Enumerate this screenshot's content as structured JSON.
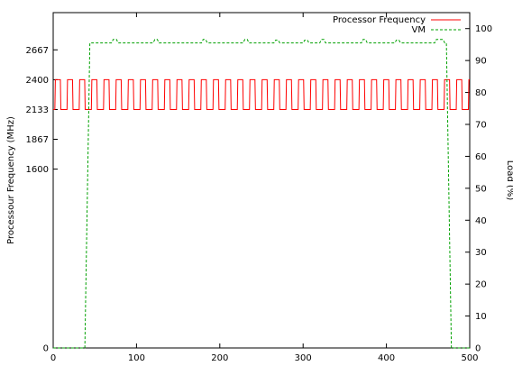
{
  "chart_data": {
    "type": "line",
    "title": "",
    "xlabel": "",
    "ylabel_left": "Processour Frequency (MHz)",
    "ylabel_right": "Load (%)",
    "xlim": [
      0,
      500
    ],
    "ylim_left": [
      0,
      3000
    ],
    "ylim_right": [
      0,
      105
    ],
    "x_ticks": [
      0,
      100,
      200,
      300,
      400,
      500
    ],
    "y_left_ticks": [
      0,
      1600,
      1867,
      2133,
      2400,
      2667
    ],
    "y_right_ticks": [
      0,
      10,
      20,
      30,
      40,
      50,
      60,
      70,
      80,
      90,
      100
    ],
    "grid": false,
    "legend_position": "top-right",
    "series": [
      {
        "name": "Processor Frequency",
        "axis": "left",
        "color": "#ff0000",
        "dash": "solid",
        "pattern": {
          "low": 2133,
          "high": 2400,
          "period": 14.6,
          "high_duration": 6.6,
          "first_rise": 2,
          "x_end": 500
        }
      },
      {
        "name": "VM",
        "axis": "right",
        "color": "#00a000",
        "dash": "dashed",
        "points": [
          [
            0,
            0
          ],
          [
            38,
            0
          ],
          [
            44,
            95.5
          ],
          [
            70,
            95.5
          ],
          [
            72,
            96.6
          ],
          [
            76,
            96.6
          ],
          [
            78,
            95.5
          ],
          [
            120,
            95.5
          ],
          [
            122,
            96.6
          ],
          [
            125,
            96.6
          ],
          [
            127,
            95.5
          ],
          [
            178,
            95.5
          ],
          [
            180,
            96.6
          ],
          [
            183,
            96.6
          ],
          [
            185,
            95.5
          ],
          [
            228,
            95.5
          ],
          [
            230,
            96.6
          ],
          [
            233,
            96.6
          ],
          [
            235,
            95.5
          ],
          [
            265,
            95.5
          ],
          [
            267,
            96.4
          ],
          [
            270,
            96.4
          ],
          [
            272,
            95.5
          ],
          [
            300,
            95.5
          ],
          [
            302,
            96.4
          ],
          [
            305,
            96.4
          ],
          [
            307,
            95.5
          ],
          [
            320,
            95.5
          ],
          [
            322,
            96.6
          ],
          [
            325,
            96.6
          ],
          [
            327,
            95.5
          ],
          [
            370,
            95.5
          ],
          [
            372,
            96.6
          ],
          [
            375,
            96.6
          ],
          [
            377,
            95.5
          ],
          [
            410,
            95.5
          ],
          [
            412,
            96.4
          ],
          [
            415,
            96.4
          ],
          [
            417,
            95.5
          ],
          [
            458,
            95.5
          ],
          [
            460,
            96.6
          ],
          [
            468,
            96.6
          ],
          [
            470,
            95.5
          ],
          [
            472,
            95.5
          ],
          [
            478,
            0
          ],
          [
            500,
            0
          ]
        ]
      }
    ]
  }
}
